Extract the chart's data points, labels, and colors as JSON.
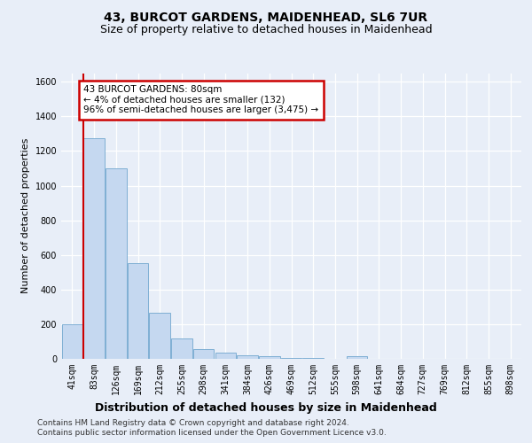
{
  "title1": "43, BURCOT GARDENS, MAIDENHEAD, SL6 7UR",
  "title2": "Size of property relative to detached houses in Maidenhead",
  "xlabel": "Distribution of detached houses by size in Maidenhead",
  "ylabel": "Number of detached properties",
  "categories": [
    "41sqm",
    "83sqm",
    "126sqm",
    "169sqm",
    "212sqm",
    "255sqm",
    "298sqm",
    "341sqm",
    "384sqm",
    "426sqm",
    "469sqm",
    "512sqm",
    "555sqm",
    "598sqm",
    "641sqm",
    "684sqm",
    "727sqm",
    "769sqm",
    "812sqm",
    "855sqm",
    "898sqm"
  ],
  "values": [
    200,
    1275,
    1100,
    555,
    265,
    120,
    58,
    35,
    22,
    15,
    5,
    3,
    2,
    15,
    2,
    0,
    0,
    0,
    0,
    0,
    0
  ],
  "bar_color": "#c5d8f0",
  "bar_edge_color": "#7fafd4",
  "highlight_color": "#cc0000",
  "annotation_text": "43 BURCOT GARDENS: 80sqm\n← 4% of detached houses are smaller (132)\n96% of semi-detached houses are larger (3,475) →",
  "annotation_box_color": "#ffffff",
  "annotation_border_color": "#cc0000",
  "ylim": [
    0,
    1650
  ],
  "yticks": [
    0,
    200,
    400,
    600,
    800,
    1000,
    1200,
    1400,
    1600
  ],
  "footer1": "Contains HM Land Registry data © Crown copyright and database right 2024.",
  "footer2": "Contains public sector information licensed under the Open Government Licence v3.0.",
  "bg_color": "#e8eef8",
  "plot_bg_color": "#e8eef8",
  "grid_color": "#ffffff",
  "title1_fontsize": 10,
  "title2_fontsize": 9,
  "xlabel_fontsize": 9,
  "ylabel_fontsize": 8,
  "tick_fontsize": 7,
  "footer_fontsize": 6.5,
  "ann_fontsize": 7.5
}
